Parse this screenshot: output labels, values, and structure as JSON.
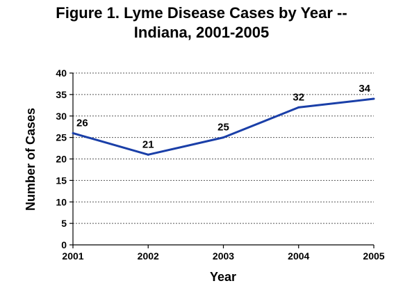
{
  "chart_data": {
    "type": "line",
    "title_lines": [
      "Figure 1. Lyme Disease Cases by Year --",
      "Indiana, 2001-2005"
    ],
    "xlabel": "Year",
    "ylabel": "Number of Cases",
    "categories": [
      "2001",
      "2002",
      "2003",
      "2004",
      "2005"
    ],
    "series": [
      {
        "values": [
          26,
          21,
          25,
          32,
          34
        ]
      }
    ],
    "ylim": [
      0,
      40
    ],
    "yticks": [
      0,
      5,
      10,
      15,
      20,
      25,
      30,
      35,
      40
    ],
    "data_labels": [
      "26",
      "21",
      "25",
      "32",
      "34"
    ],
    "grid": "horizontal dotted",
    "legend": "none",
    "colors": {
      "line": "#1a3fa8",
      "grid": "#555555",
      "axis": "#000000"
    }
  }
}
